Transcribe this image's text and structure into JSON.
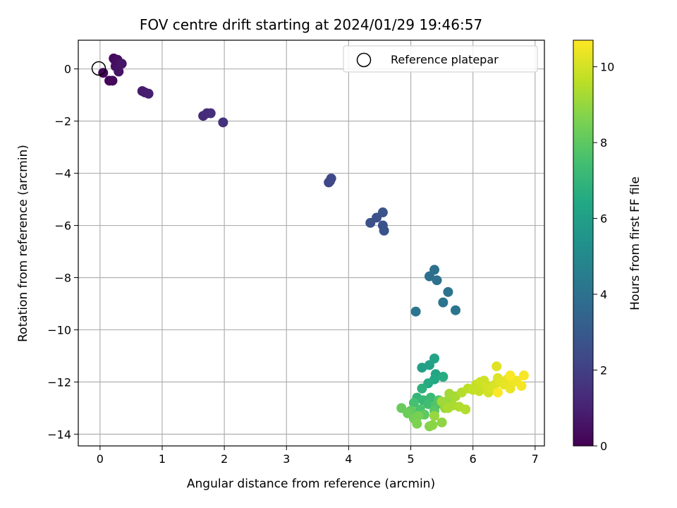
{
  "chart_data": {
    "type": "scatter",
    "title": "FOV centre drift starting at 2024/01/29 19:46:57",
    "xlabel": "Angular distance from reference (arcmin)",
    "ylabel": "Rotation from reference (arcmin)",
    "xlim": [
      -0.35,
      7.15
    ],
    "ylim": [
      -14.45,
      1.1
    ],
    "x_ticks": [
      0,
      1,
      2,
      3,
      4,
      5,
      6,
      7
    ],
    "y_ticks": [
      0,
      -2,
      -4,
      -6,
      -8,
      -10,
      -12,
      -14
    ],
    "x_tick_labels": [
      "0",
      "1",
      "2",
      "3",
      "4",
      "5",
      "6",
      "7"
    ],
    "y_tick_labels": [
      "0",
      "−2",
      "−4",
      "−6",
      "−8",
      "−10",
      "−12",
      "−14"
    ],
    "grid": true,
    "colormap": "viridis",
    "colorbar": {
      "label": "Hours from first FF file",
      "range": [
        0,
        10.7
      ],
      "ticks": [
        0,
        2,
        4,
        6,
        8,
        10
      ],
      "tick_labels": [
        "0",
        "2",
        "4",
        "6",
        "8",
        "10"
      ]
    },
    "legend": {
      "position": "top-right",
      "entries": [
        "Reference platepar"
      ]
    },
    "reference_point": {
      "x": 0,
      "y": 0
    },
    "points": [
      {
        "x": 0.05,
        "y": -0.15,
        "hours": 0.1
      },
      {
        "x": 0.15,
        "y": -0.45,
        "hours": 0.15
      },
      {
        "x": 0.2,
        "y": -0.45,
        "hours": 0.2
      },
      {
        "x": 0.22,
        "y": 0.4,
        "hours": 0.25
      },
      {
        "x": 0.25,
        "y": 0.3,
        "hours": 0.3
      },
      {
        "x": 0.28,
        "y": 0.35,
        "hours": 0.35
      },
      {
        "x": 0.3,
        "y": 0.25,
        "hours": 0.4
      },
      {
        "x": 0.25,
        "y": 0.1,
        "hours": 0.45
      },
      {
        "x": 0.28,
        "y": 0.05,
        "hours": 0.5
      },
      {
        "x": 0.3,
        "y": -0.1,
        "hours": 0.55
      },
      {
        "x": 0.35,
        "y": 0.2,
        "hours": 0.6
      },
      {
        "x": 0.68,
        "y": -0.85,
        "hours": 0.8
      },
      {
        "x": 0.72,
        "y": -0.9,
        "hours": 0.85
      },
      {
        "x": 0.78,
        "y": -0.95,
        "hours": 0.9
      },
      {
        "x": 1.66,
        "y": -1.8,
        "hours": 1.3
      },
      {
        "x": 1.72,
        "y": -1.7,
        "hours": 1.35
      },
      {
        "x": 1.78,
        "y": -1.7,
        "hours": 1.4
      },
      {
        "x": 1.98,
        "y": -2.05,
        "hours": 1.5
      },
      {
        "x": 3.68,
        "y": -4.35,
        "hours": 2.2
      },
      {
        "x": 3.7,
        "y": -4.3,
        "hours": 2.25
      },
      {
        "x": 3.72,
        "y": -4.2,
        "hours": 2.3
      },
      {
        "x": 4.35,
        "y": -5.9,
        "hours": 2.6
      },
      {
        "x": 4.45,
        "y": -5.7,
        "hours": 2.65
      },
      {
        "x": 4.55,
        "y": -6.0,
        "hours": 2.7
      },
      {
        "x": 4.57,
        "y": -6.2,
        "hours": 2.75
      },
      {
        "x": 4.55,
        "y": -5.5,
        "hours": 2.8
      },
      {
        "x": 5.3,
        "y": -7.95,
        "hours": 3.9
      },
      {
        "x": 5.38,
        "y": -7.7,
        "hours": 3.95
      },
      {
        "x": 5.42,
        "y": -8.1,
        "hours": 4.0
      },
      {
        "x": 5.6,
        "y": -8.55,
        "hours": 4.05
      },
      {
        "x": 5.52,
        "y": -8.95,
        "hours": 4.1
      },
      {
        "x": 5.72,
        "y": -9.25,
        "hours": 4.15
      },
      {
        "x": 5.08,
        "y": -9.3,
        "hours": 4.2
      },
      {
        "x": 5.18,
        "y": -11.45,
        "hours": 6.0
      },
      {
        "x": 5.3,
        "y": -11.35,
        "hours": 6.1
      },
      {
        "x": 5.38,
        "y": -11.1,
        "hours": 6.2
      },
      {
        "x": 5.4,
        "y": -11.7,
        "hours": 6.3
      },
      {
        "x": 5.38,
        "y": -11.9,
        "hours": 6.4
      },
      {
        "x": 5.28,
        "y": -12.05,
        "hours": 6.5
      },
      {
        "x": 5.52,
        "y": -11.8,
        "hours": 6.6
      },
      {
        "x": 5.18,
        "y": -12.25,
        "hours": 6.8
      },
      {
        "x": 5.1,
        "y": -12.6,
        "hours": 7.0
      },
      {
        "x": 5.2,
        "y": -12.7,
        "hours": 7.1
      },
      {
        "x": 5.32,
        "y": -12.6,
        "hours": 7.2
      },
      {
        "x": 5.28,
        "y": -12.85,
        "hours": 7.4
      },
      {
        "x": 5.05,
        "y": -12.8,
        "hours": 7.5
      },
      {
        "x": 5.15,
        "y": -13.05,
        "hours": 7.6
      },
      {
        "x": 5.4,
        "y": -12.9,
        "hours": 7.7
      },
      {
        "x": 5.45,
        "y": -12.7,
        "hours": 7.8
      },
      {
        "x": 5.38,
        "y": -13.1,
        "hours": 7.9
      },
      {
        "x": 5.22,
        "y": -13.25,
        "hours": 8.0
      },
      {
        "x": 5.0,
        "y": -13.1,
        "hours": 8.1
      },
      {
        "x": 4.85,
        "y": -13.0,
        "hours": 8.2
      },
      {
        "x": 4.95,
        "y": -13.2,
        "hours": 8.3
      },
      {
        "x": 5.05,
        "y": -13.4,
        "hours": 8.4
      },
      {
        "x": 5.12,
        "y": -13.3,
        "hours": 8.5
      },
      {
        "x": 5.1,
        "y": -13.6,
        "hours": 8.6
      },
      {
        "x": 5.3,
        "y": -13.7,
        "hours": 8.7
      },
      {
        "x": 5.35,
        "y": -13.65,
        "hours": 8.8
      },
      {
        "x": 5.5,
        "y": -13.55,
        "hours": 8.9
      },
      {
        "x": 5.38,
        "y": -13.3,
        "hours": 9.0
      },
      {
        "x": 5.55,
        "y": -13.0,
        "hours": 9.05
      },
      {
        "x": 5.6,
        "y": -12.7,
        "hours": 9.1
      },
      {
        "x": 5.5,
        "y": -12.75,
        "hours": 9.15
      },
      {
        "x": 5.62,
        "y": -12.45,
        "hours": 9.2
      },
      {
        "x": 5.72,
        "y": -12.55,
        "hours": 9.25
      },
      {
        "x": 5.68,
        "y": -12.9,
        "hours": 9.3
      },
      {
        "x": 5.6,
        "y": -13.0,
        "hours": 9.35
      },
      {
        "x": 5.78,
        "y": -12.95,
        "hours": 9.4
      },
      {
        "x": 5.88,
        "y": -13.05,
        "hours": 9.45
      },
      {
        "x": 5.82,
        "y": -12.4,
        "hours": 9.5
      },
      {
        "x": 5.92,
        "y": -12.25,
        "hours": 9.6
      },
      {
        "x": 6.0,
        "y": -12.3,
        "hours": 9.7
      },
      {
        "x": 6.05,
        "y": -12.1,
        "hours": 9.75
      },
      {
        "x": 6.1,
        "y": -12.35,
        "hours": 9.8
      },
      {
        "x": 6.12,
        "y": -12.0,
        "hours": 9.85
      },
      {
        "x": 6.18,
        "y": -11.95,
        "hours": 9.9
      },
      {
        "x": 6.22,
        "y": -12.15,
        "hours": 9.95
      },
      {
        "x": 6.25,
        "y": -12.4,
        "hours": 10.0
      },
      {
        "x": 6.3,
        "y": -12.25,
        "hours": 10.05
      },
      {
        "x": 6.35,
        "y": -12.1,
        "hours": 10.1
      },
      {
        "x": 6.4,
        "y": -11.85,
        "hours": 10.15
      },
      {
        "x": 6.38,
        "y": -11.4,
        "hours": 10.2
      },
      {
        "x": 6.45,
        "y": -12.0,
        "hours": 10.25
      },
      {
        "x": 6.5,
        "y": -12.1,
        "hours": 10.3
      },
      {
        "x": 6.55,
        "y": -11.9,
        "hours": 10.35
      },
      {
        "x": 6.6,
        "y": -12.25,
        "hours": 10.4
      },
      {
        "x": 6.65,
        "y": -12.0,
        "hours": 10.45
      },
      {
        "x": 6.7,
        "y": -11.95,
        "hours": 10.5
      },
      {
        "x": 6.78,
        "y": -12.15,
        "hours": 10.55
      },
      {
        "x": 6.82,
        "y": -11.75,
        "hours": 10.6
      },
      {
        "x": 6.6,
        "y": -11.75,
        "hours": 10.65
      },
      {
        "x": 6.4,
        "y": -12.4,
        "hours": 10.7
      }
    ]
  }
}
